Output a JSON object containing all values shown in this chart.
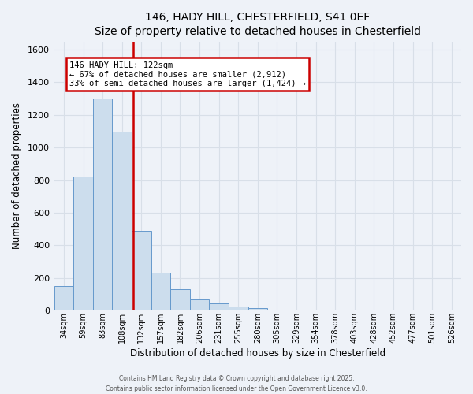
{
  "title": "146, HADY HILL, CHESTERFIELD, S41 0EF",
  "subtitle": "Size of property relative to detached houses in Chesterfield",
  "xlabel": "Distribution of detached houses by size in Chesterfield",
  "ylabel": "Number of detached properties",
  "bar_values": [
    150,
    820,
    1300,
    1100,
    490,
    235,
    130,
    70,
    45,
    25,
    15,
    5,
    0,
    0,
    0,
    0,
    0,
    0,
    0,
    0,
    0
  ],
  "categories": [
    "34sqm",
    "59sqm",
    "83sqm",
    "108sqm",
    "132sqm",
    "157sqm",
    "182sqm",
    "206sqm",
    "231sqm",
    "255sqm",
    "280sqm",
    "305sqm",
    "329sqm",
    "354sqm",
    "378sqm",
    "403sqm",
    "428sqm",
    "452sqm",
    "477sqm",
    "501sqm",
    "526sqm"
  ],
  "bar_color": "#ccdded",
  "bar_edge_color": "#6699cc",
  "ylim": [
    0,
    1650
  ],
  "yticks": [
    0,
    200,
    400,
    600,
    800,
    1000,
    1200,
    1400,
    1600
  ],
  "property_line_bin": 3.58,
  "annotation_title": "146 HADY HILL: 122sqm",
  "annotation_line1": "← 67% of detached houses are smaller (2,912)",
  "annotation_line2": "33% of semi-detached houses are larger (1,424) →",
  "annotation_box_color": "#ffffff",
  "annotation_box_edge": "#cc0000",
  "line_color": "#cc0000",
  "footer1": "Contains HM Land Registry data © Crown copyright and database right 2025.",
  "footer2": "Contains public sector information licensed under the Open Government Licence v3.0.",
  "background_color": "#eef2f8",
  "plot_background": "#eef2f8",
  "grid_color": "#d8dfe8",
  "title_fontsize": 10,
  "subtitle_fontsize": 9
}
